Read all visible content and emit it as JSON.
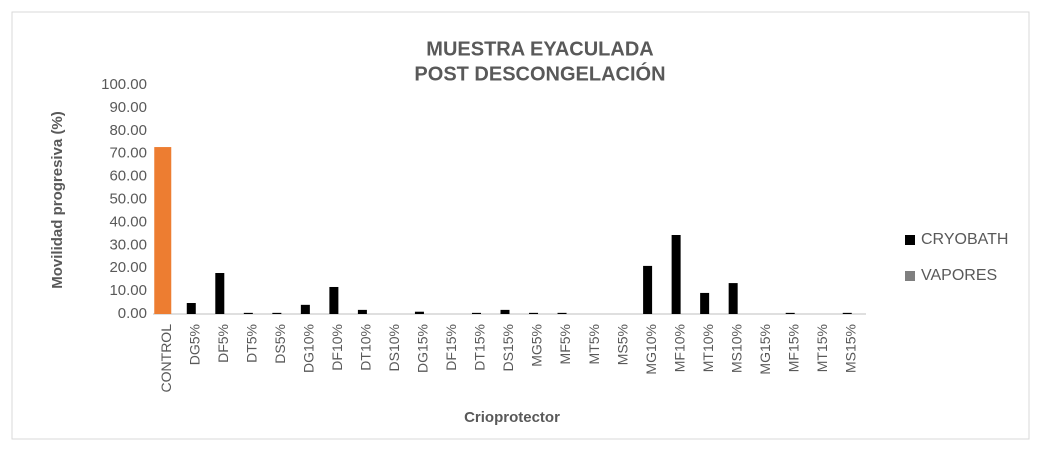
{
  "chart_data": {
    "type": "bar",
    "title": [
      "MUESTRA EYACULADA",
      "POST DESCONGELACIÓN"
    ],
    "y_label": "Movilidad progresiva (%)",
    "x_label": "Crioprotector",
    "categories": [
      "CONTROL",
      "DG5%",
      "DF5%",
      "DT5%",
      "DS5%",
      "DG10%",
      "DF10%",
      "DT10%",
      "DS10%",
      "DG15%",
      "DF15%",
      "DT15%",
      "DS15%",
      "MG5%",
      "MF5%",
      "MT5%",
      "MS5%",
      "MG10%",
      "MF10%",
      "MT10%",
      "MS10%",
      "MG15%",
      "MF15%",
      "MT15%",
      "MS15%"
    ],
    "series": [
      {
        "name": "CRYOBATH",
        "color": "#000000",
        "colors": [
          "#ed7d31",
          "#000000",
          "#000000",
          "#000000",
          "#000000",
          "#000000",
          "#000000",
          "#000000",
          "#000000",
          "#000000",
          "#000000",
          "#000000",
          "#000000",
          "#000000",
          "#000000",
          "#000000",
          "#000000",
          "#000000",
          "#000000",
          "#000000",
          "#000000",
          "#000000",
          "#000000",
          "#000000",
          "#000000"
        ],
        "values": [
          72.9,
          4.8,
          17.9,
          0.5,
          0.5,
          4.0,
          11.8,
          1.8,
          0,
          1.0,
          0,
          0.5,
          1.8,
          0.5,
          0.5,
          0,
          0,
          21.0,
          34.5,
          9.2,
          13.5,
          0,
          0.5,
          0,
          0.5
        ]
      },
      {
        "name": "VAPORES",
        "color": "#7f7f7f",
        "values": [
          null,
          null,
          null,
          null,
          null,
          null,
          null,
          null,
          null,
          null,
          null,
          null,
          null,
          null,
          null,
          null,
          null,
          null,
          null,
          null,
          null,
          null,
          null,
          null,
          null
        ]
      }
    ],
    "ylim": [
      0,
      100
    ],
    "yticks": [
      {
        "value": 0,
        "label": "0.00"
      },
      {
        "value": 10,
        "label": "10.00"
      },
      {
        "value": 20,
        "label": "20.00"
      },
      {
        "value": 30,
        "label": "30.00"
      },
      {
        "value": 40,
        "label": "40.00"
      },
      {
        "value": 50,
        "label": "50.00"
      },
      {
        "value": 60,
        "label": "60.00"
      },
      {
        "value": 70,
        "label": "70.00"
      },
      {
        "value": 80,
        "label": "80.00"
      },
      {
        "value": 90,
        "label": "90.00"
      },
      {
        "value": 100,
        "label": "100.00"
      }
    ],
    "grid": false,
    "legend": "right"
  }
}
